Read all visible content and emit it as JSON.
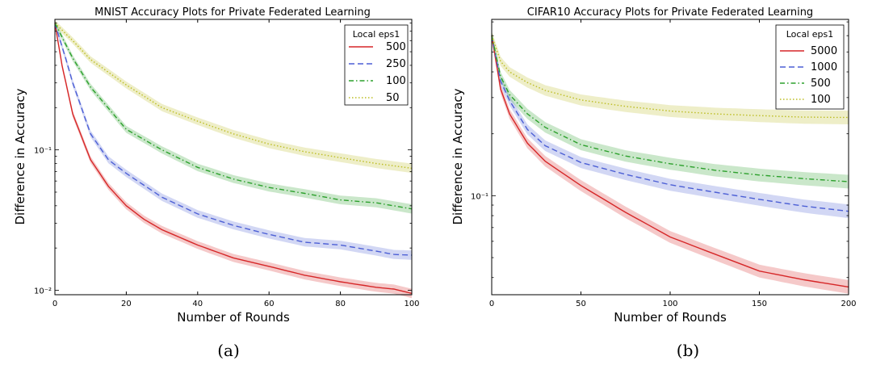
{
  "chart_data": [
    {
      "type": "line",
      "title": "MNIST Accuracy Plots for Private Federated Learning",
      "xlabel": "Number of Rounds",
      "ylabel": "Difference in Accuracy",
      "yscale": "log",
      "xlim": [
        0,
        100
      ],
      "ylim": [
        0.0093,
        0.85
      ],
      "xticks": [
        0,
        20,
        40,
        60,
        80,
        100
      ],
      "xtick_labels": [
        "0",
        "20",
        "40",
        "60",
        "80",
        "100"
      ],
      "yticks": [
        0.1,
        0.01
      ],
      "ytick_labels": [
        "10⁻¹",
        "10⁻²"
      ],
      "legend_title": "Local eps1",
      "legend_position": "top-right",
      "caption": "(a)",
      "series": [
        {
          "name": "500",
          "color": "#d62728",
          "dash": "solid",
          "x": [
            0,
            2,
            5,
            10,
            15,
            20,
            25,
            30,
            40,
            50,
            60,
            70,
            80,
            90,
            95,
            100
          ],
          "y": [
            0.8,
            0.4,
            0.18,
            0.085,
            0.055,
            0.04,
            0.032,
            0.027,
            0.021,
            0.017,
            0.0148,
            0.0128,
            0.0115,
            0.0105,
            0.0102,
            0.0095
          ]
        },
        {
          "name": "250",
          "color": "#4c5fd5",
          "dash": "dashed",
          "x": [
            0,
            3,
            5,
            10,
            15,
            20,
            30,
            40,
            50,
            60,
            70,
            80,
            90,
            95,
            100
          ],
          "y": [
            0.8,
            0.45,
            0.3,
            0.13,
            0.085,
            0.068,
            0.046,
            0.035,
            0.029,
            0.025,
            0.022,
            0.021,
            0.019,
            0.018,
            0.0178
          ]
        },
        {
          "name": "100",
          "color": "#2ca02c",
          "dash": "dashdot",
          "x": [
            0,
            5,
            10,
            20,
            30,
            40,
            50,
            60,
            70,
            80,
            90,
            100
          ],
          "y": [
            0.8,
            0.45,
            0.28,
            0.14,
            0.1,
            0.075,
            0.062,
            0.054,
            0.049,
            0.044,
            0.042,
            0.038
          ]
        },
        {
          "name": "50",
          "color": "#bcbd22",
          "dash": "dotted",
          "x": [
            0,
            5,
            10,
            20,
            30,
            40,
            50,
            60,
            70,
            80,
            90,
            100
          ],
          "y": [
            0.8,
            0.6,
            0.44,
            0.29,
            0.2,
            0.16,
            0.13,
            0.11,
            0.097,
            0.088,
            0.08,
            0.074
          ]
        }
      ]
    },
    {
      "type": "line",
      "title": "CIFAR10 Accuracy Plots for Private Federated Learning",
      "xlabel": "Number of Rounds",
      "ylabel": "Difference in Accuracy",
      "yscale": "log",
      "xlim": [
        0,
        200
      ],
      "ylim": [
        0.033,
        0.72
      ],
      "xticks": [
        0,
        50,
        100,
        150,
        200
      ],
      "xtick_labels": [
        "0",
        "50",
        "100",
        "150",
        "200"
      ],
      "yticks": [
        0.1
      ],
      "ytick_labels": [
        "10⁻¹"
      ],
      "legend_title": "Local eps1",
      "legend_position": "top-right",
      "caption": "(b)",
      "series": [
        {
          "name": "5000",
          "color": "#d62728",
          "dash": "solid",
          "x": [
            0,
            5,
            10,
            20,
            30,
            50,
            75,
            100,
            125,
            150,
            175,
            200
          ],
          "y": [
            0.6,
            0.33,
            0.25,
            0.18,
            0.147,
            0.112,
            0.083,
            0.063,
            0.052,
            0.043,
            0.039,
            0.036
          ]
        },
        {
          "name": "1000",
          "color": "#4c5fd5",
          "dash": "dashed",
          "x": [
            0,
            5,
            10,
            20,
            30,
            50,
            75,
            100,
            125,
            150,
            175,
            200
          ],
          "y": [
            0.6,
            0.36,
            0.29,
            0.21,
            0.175,
            0.145,
            0.127,
            0.113,
            0.104,
            0.096,
            0.089,
            0.084
          ]
        },
        {
          "name": "500",
          "color": "#2ca02c",
          "dash": "dashdot",
          "x": [
            0,
            5,
            10,
            20,
            30,
            50,
            75,
            100,
            125,
            150,
            175,
            200
          ],
          "y": [
            0.6,
            0.38,
            0.31,
            0.25,
            0.215,
            0.177,
            0.156,
            0.143,
            0.133,
            0.126,
            0.121,
            0.117
          ]
        },
        {
          "name": "100",
          "color": "#bcbd22",
          "dash": "dotted",
          "x": [
            0,
            5,
            10,
            20,
            30,
            50,
            75,
            100,
            125,
            150,
            175,
            200
          ],
          "y": [
            0.6,
            0.45,
            0.4,
            0.355,
            0.325,
            0.292,
            0.272,
            0.258,
            0.25,
            0.245,
            0.241,
            0.24
          ]
        }
      ]
    }
  ]
}
